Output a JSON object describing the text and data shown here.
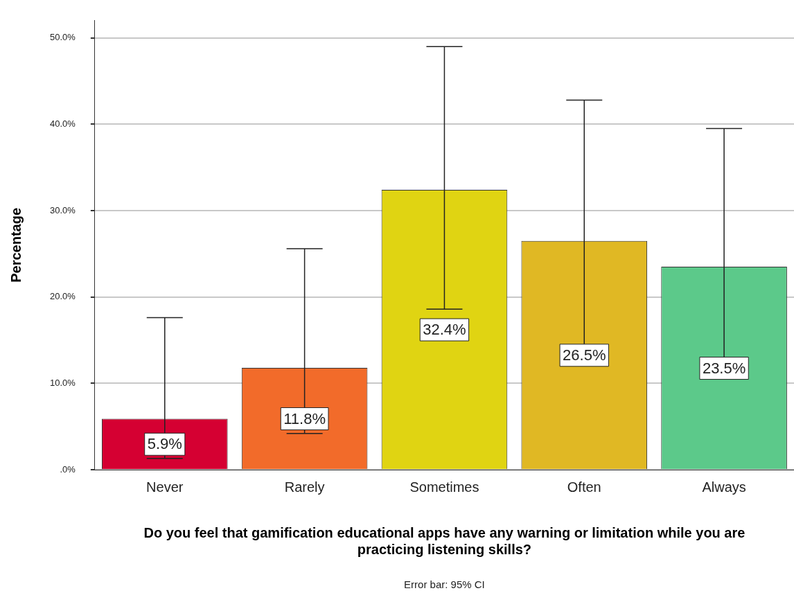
{
  "chart_data": {
    "type": "bar",
    "categories": [
      "Never",
      "Rarely",
      "Sometimes",
      "Often",
      "Always"
    ],
    "values": [
      5.9,
      11.8,
      32.4,
      26.5,
      23.5
    ],
    "colors": [
      "#d50032",
      "#f26b2a",
      "#e0d412",
      "#e0b824",
      "#5cc98a"
    ],
    "errors": [
      [
        1.3,
        17.6
      ],
      [
        4.2,
        25.6
      ],
      [
        18.6,
        49.0
      ],
      [
        14.0,
        42.8
      ],
      [
        11.8,
        39.5
      ]
    ],
    "value_labels": [
      "5.9%",
      "11.8%",
      "32.4%",
      "26.5%",
      "23.5%"
    ],
    "xlabel": "Do you feel that gamification educational apps have any warning or limitation while you are practicing listening skills?",
    "ylabel": "Percentage",
    "ylim": [
      0,
      52
    ],
    "yticks": [
      {
        "value": 0,
        "label": ".0%"
      },
      {
        "value": 10,
        "label": "10.0%"
      },
      {
        "value": 20,
        "label": "20.0%"
      },
      {
        "value": 30,
        "label": "30.0%"
      },
      {
        "value": 40,
        "label": "40.0%"
      },
      {
        "value": 50,
        "label": "50.0%"
      }
    ],
    "grid": "y",
    "legend": false,
    "annotations": [
      "Error bar: 95% CI"
    ]
  }
}
